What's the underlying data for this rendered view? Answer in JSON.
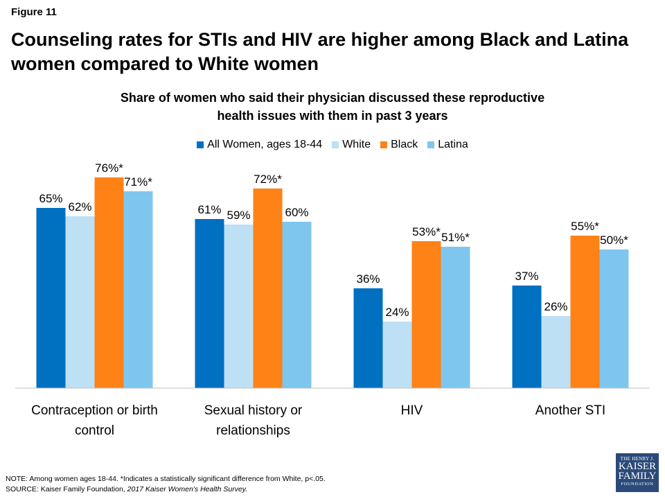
{
  "figure_label": "Figure 11",
  "headline_line1": "Counseling rates for STIs and HIV are higher among Black and Latina",
  "headline_line2": "women compared to White women",
  "chart_data": {
    "type": "bar",
    "title_line1": "Share of women who said their physician discussed these reproductive",
    "title_line2": "health issues with them in past 3 years",
    "categories": [
      [
        "Contraception or birth",
        "control"
      ],
      [
        "Sexual history or",
        "relationships"
      ],
      [
        "HIV"
      ],
      [
        "Another STI"
      ]
    ],
    "series": [
      {
        "name": "All Women, ages 18-44",
        "color": "#0070c0",
        "values": [
          65,
          61,
          36,
          37
        ],
        "labels": [
          "65%",
          "61%",
          "36%",
          "37%"
        ]
      },
      {
        "name": "White",
        "color": "#bde0f5",
        "values": [
          62,
          59,
          24,
          26
        ],
        "labels": [
          "62%",
          "59%",
          "24%",
          "26%"
        ]
      },
      {
        "name": "Black",
        "color": "#ff8217",
        "values": [
          76,
          72,
          53,
          55
        ],
        "labels": [
          "76%*",
          "72%*",
          "53%*",
          "55%*"
        ]
      },
      {
        "name": "Latina",
        "color": "#7fc6ee",
        "values": [
          71,
          60,
          51,
          50
        ],
        "labels": [
          "71%*",
          "60%",
          "51%*",
          "50%*"
        ]
      }
    ],
    "ylim": [
      0,
      100
    ],
    "legend_position": "top",
    "grid": false
  },
  "notes": {
    "note": "NOTE:  Among women ages 18-44. *Indicates a statistically significant difference from White, p<.05.",
    "source_prefix": "SOURCE:  Kaiser Family Foundation, ",
    "source_title": "2017 Kaiser Women’s Health Survey."
  },
  "logo": {
    "line1": "THE HENRY J.",
    "line2": "KAISER",
    "line3": "FAMILY",
    "line4": "FOUNDATION"
  }
}
